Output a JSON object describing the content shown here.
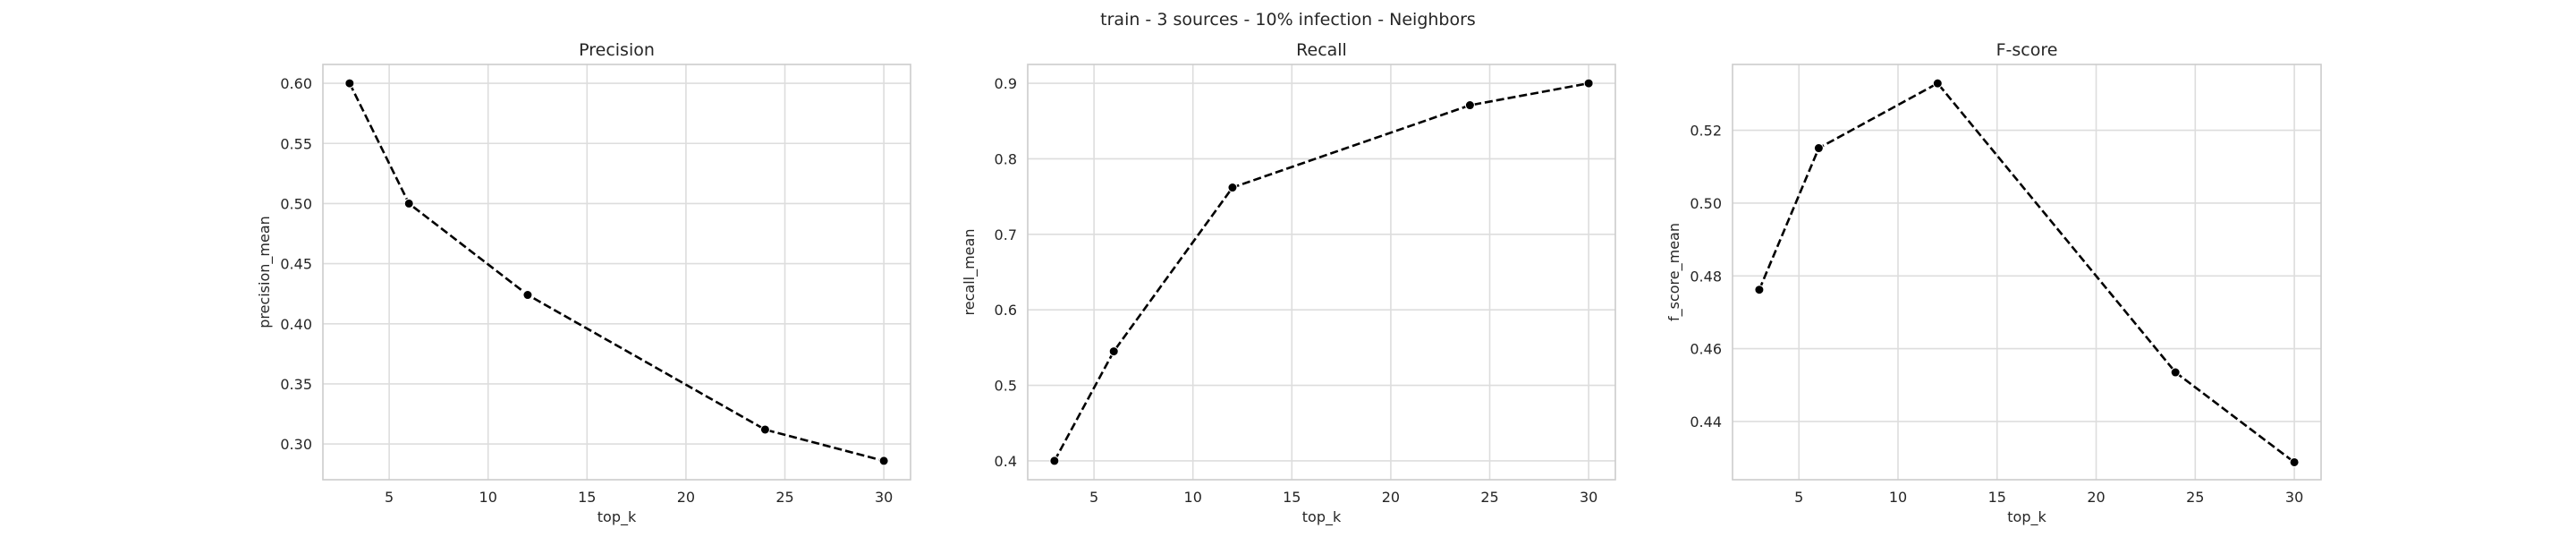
{
  "figure": {
    "suptitle": "train - 3 sources - 10% infection - Neighbors"
  },
  "chart_data": [
    {
      "type": "line",
      "title": "Precision",
      "xlabel": "top_k",
      "ylabel": "precision_mean",
      "x": [
        3,
        6,
        12,
        24,
        30
      ],
      "y": [
        0.6,
        0.5,
        0.424,
        0.312,
        0.286
      ],
      "xlim": [
        1.65,
        31.35
      ],
      "ylim": [
        0.2703,
        0.6157
      ],
      "xticks": [
        5,
        10,
        15,
        20,
        25,
        30
      ],
      "yticks": [
        0.3,
        0.35,
        0.4,
        0.45,
        0.5,
        0.55,
        0.6
      ],
      "ytick_labels": [
        "0.30",
        "0.35",
        "0.40",
        "0.45",
        "0.50",
        "0.55",
        "0.60"
      ],
      "line_style": "dashed",
      "line_color": "#000000",
      "marker": "circle",
      "grid": true
    },
    {
      "type": "line",
      "title": "Recall",
      "xlabel": "top_k",
      "ylabel": "recall_mean",
      "x": [
        3,
        6,
        12,
        24,
        30
      ],
      "y": [
        0.4,
        0.545,
        0.762,
        0.871,
        0.9
      ],
      "xlim": [
        1.65,
        31.35
      ],
      "ylim": [
        0.375,
        0.925
      ],
      "xticks": [
        5,
        10,
        15,
        20,
        25,
        30
      ],
      "yticks": [
        0.4,
        0.5,
        0.6,
        0.7,
        0.8,
        0.9
      ],
      "ytick_labels": [
        "0.4",
        "0.5",
        "0.6",
        "0.7",
        "0.8",
        "0.9"
      ],
      "line_style": "dashed",
      "line_color": "#000000",
      "marker": "circle",
      "grid": true
    },
    {
      "type": "line",
      "title": "F-score",
      "xlabel": "top_k",
      "ylabel": "f_score_mean",
      "x": [
        3,
        6,
        12,
        24,
        30
      ],
      "y": [
        0.4762,
        0.5151,
        0.5329,
        0.4535,
        0.4288
      ],
      "xlim": [
        1.65,
        31.35
      ],
      "ylim": [
        0.424,
        0.5381
      ],
      "xticks": [
        5,
        10,
        15,
        20,
        25,
        30
      ],
      "yticks": [
        0.44,
        0.46,
        0.48,
        0.5,
        0.52
      ],
      "ytick_labels": [
        "0.44",
        "0.46",
        "0.48",
        "0.50",
        "0.52"
      ],
      "line_style": "dashed",
      "line_color": "#000000",
      "marker": "circle",
      "grid": true
    }
  ]
}
